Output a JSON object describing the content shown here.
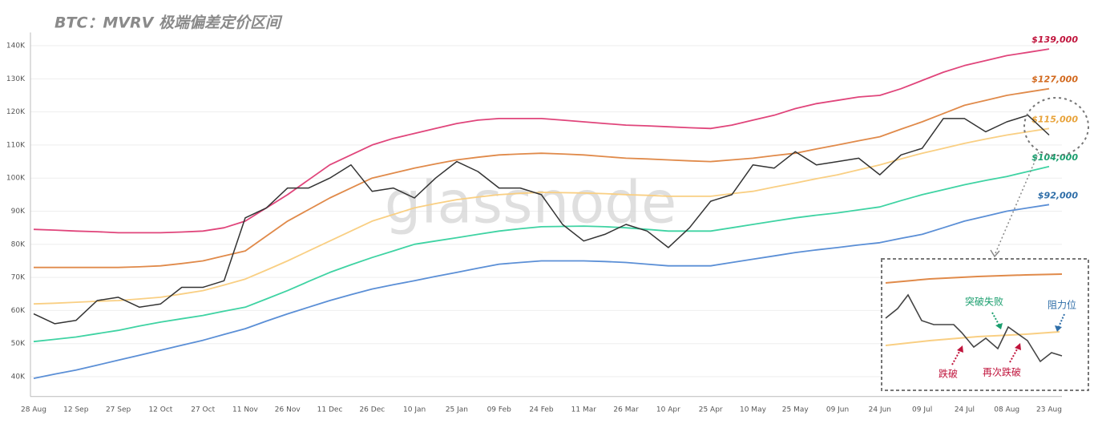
{
  "chart_data": {
    "type": "line",
    "title": "BTC：MVRV 极端偏差定价区间",
    "watermark": "glassnode",
    "categories": [
      "28 Aug",
      null,
      "12 Sep",
      null,
      "27 Sep",
      null,
      "12 Oct",
      null,
      "27 Oct",
      null,
      "11 Nov",
      null,
      "26 Nov",
      null,
      "11 Dec",
      null,
      "26 Dec",
      null,
      "10 Jan",
      null,
      "25 Jan",
      null,
      "09 Feb",
      null,
      "24 Feb",
      null,
      "11 Mar",
      null,
      "26 Mar",
      null,
      "10 Apr",
      null,
      "25 Apr",
      null,
      "10 May",
      null,
      "25 May",
      null,
      "09 Jun",
      null,
      "24 Jun",
      null,
      "09 Jul",
      null,
      "24 Jul",
      null,
      "08 Aug",
      null,
      "23 Aug"
    ],
    "series": [
      {
        "name": "$139,000",
        "color": "#e0457b",
        "label_color": "#c0143c",
        "values": [
          84500,
          84300,
          84000,
          83800,
          83500,
          83500,
          83500,
          83700,
          84000,
          85000,
          87000,
          91000,
          95000,
          99500,
          104000,
          107000,
          110000,
          112000,
          113500,
          115000,
          116500,
          117500,
          118000,
          118000,
          118000,
          117500,
          117000,
          116500,
          116000,
          115800,
          115500,
          115200,
          115000,
          116000,
          117500,
          119000,
          121000,
          122500,
          123500,
          124500,
          125000,
          127000,
          129500,
          132000,
          134000,
          135500,
          137000,
          138000,
          139000
        ]
      },
      {
        "name": "$127,000",
        "color": "#e08a4a",
        "label_color": "#d2691e",
        "values": [
          73000,
          73000,
          73000,
          73000,
          73000,
          73200,
          73500,
          74200,
          75000,
          76500,
          78000,
          82500,
          87000,
          90500,
          94000,
          97000,
          100000,
          101500,
          103000,
          104300,
          105500,
          106300,
          107000,
          107300,
          107500,
          107300,
          107000,
          106500,
          106000,
          105800,
          105500,
          105200,
          105000,
          105500,
          106000,
          106800,
          107500,
          108800,
          110000,
          111300,
          112500,
          114800,
          117000,
          119500,
          122000,
          123500,
          125000,
          126000,
          127000
        ]
      },
      {
        "name": "$115,000",
        "color": "#f9cf83",
        "label_color": "#e8a33b",
        "values": [
          62000,
          62200,
          62500,
          62800,
          63000,
          63500,
          64000,
          65000,
          66000,
          67700,
          69500,
          72200,
          75000,
          78000,
          81000,
          84000,
          87000,
          89000,
          91000,
          92300,
          93500,
          94300,
          95000,
          95400,
          95700,
          95600,
          95500,
          95300,
          95000,
          94800,
          94500,
          94500,
          94500,
          95300,
          96000,
          97300,
          98500,
          99800,
          101000,
          102500,
          104000,
          105800,
          107500,
          109000,
          110500,
          111800,
          113000,
          114000,
          115000
        ]
      },
      {
        "name": "$104,000",
        "color": "#3fd3a3",
        "label_color": "#1a9e6e",
        "values": [
          50600,
          51300,
          52000,
          53000,
          54000,
          55300,
          56500,
          57500,
          58500,
          59800,
          61000,
          63500,
          66000,
          68800,
          71500,
          73800,
          76000,
          78000,
          80000,
          81000,
          82000,
          83000,
          84000,
          84700,
          85300,
          85400,
          85500,
          85300,
          85000,
          84500,
          84000,
          84000,
          84000,
          85000,
          86000,
          87000,
          88000,
          88800,
          89500,
          90400,
          91300,
          93200,
          95000,
          96500,
          98000,
          99300,
          100500,
          102000,
          103500
        ]
      },
      {
        "name": "$92,000",
        "color": "#5b8fd6",
        "label_color": "#2f6ea8",
        "values": [
          39500,
          40800,
          42000,
          43500,
          45000,
          46500,
          48000,
          49500,
          51000,
          52800,
          54500,
          56800,
          59000,
          61000,
          63000,
          64800,
          66500,
          67800,
          69000,
          70300,
          71500,
          72800,
          74000,
          74500,
          75000,
          75000,
          75000,
          74800,
          74500,
          74000,
          73500,
          73500,
          73500,
          74500,
          75500,
          76500,
          77500,
          78300,
          79000,
          79800,
          80500,
          81800,
          83000,
          85000,
          87000,
          88500,
          90000,
          91000,
          92000
        ]
      },
      {
        "color": "#333333",
        "values": [
          59000,
          56000,
          57000,
          63000,
          64000,
          61000,
          62000,
          67000,
          67000,
          69000,
          88000,
          91000,
          97000,
          97000,
          100000,
          104000,
          96000,
          97000,
          94000,
          100000,
          105000,
          102000,
          97000,
          97000,
          95000,
          86000,
          81000,
          83000,
          86000,
          84000,
          79000,
          85000,
          93000,
          95000,
          104000,
          103000,
          108000,
          104000,
          105000,
          106000,
          101000,
          107000,
          109000,
          118000,
          118000,
          114000,
          117000,
          119000,
          113000
        ]
      }
    ],
    "ylim": [
      34000,
      144000
    ],
    "yticks": [
      {
        "value": 40000,
        "label": "40K"
      },
      {
        "value": 50000,
        "label": "50K"
      },
      {
        "value": 60000,
        "label": "60K"
      },
      {
        "value": 70000,
        "label": "70K"
      },
      {
        "value": 80000,
        "label": "80K"
      },
      {
        "value": 90000,
        "label": "90K"
      },
      {
        "value": 100000,
        "label": "100K"
      },
      {
        "value": 110000,
        "label": "110K"
      },
      {
        "value": 120000,
        "label": "120K"
      },
      {
        "value": 130000,
        "label": "130K"
      },
      {
        "value": 140000,
        "label": "140K"
      }
    ],
    "grid": true,
    "annotations": [
      "突破失败",
      "阻力位",
      "跌破",
      "再次跌破"
    ]
  }
}
